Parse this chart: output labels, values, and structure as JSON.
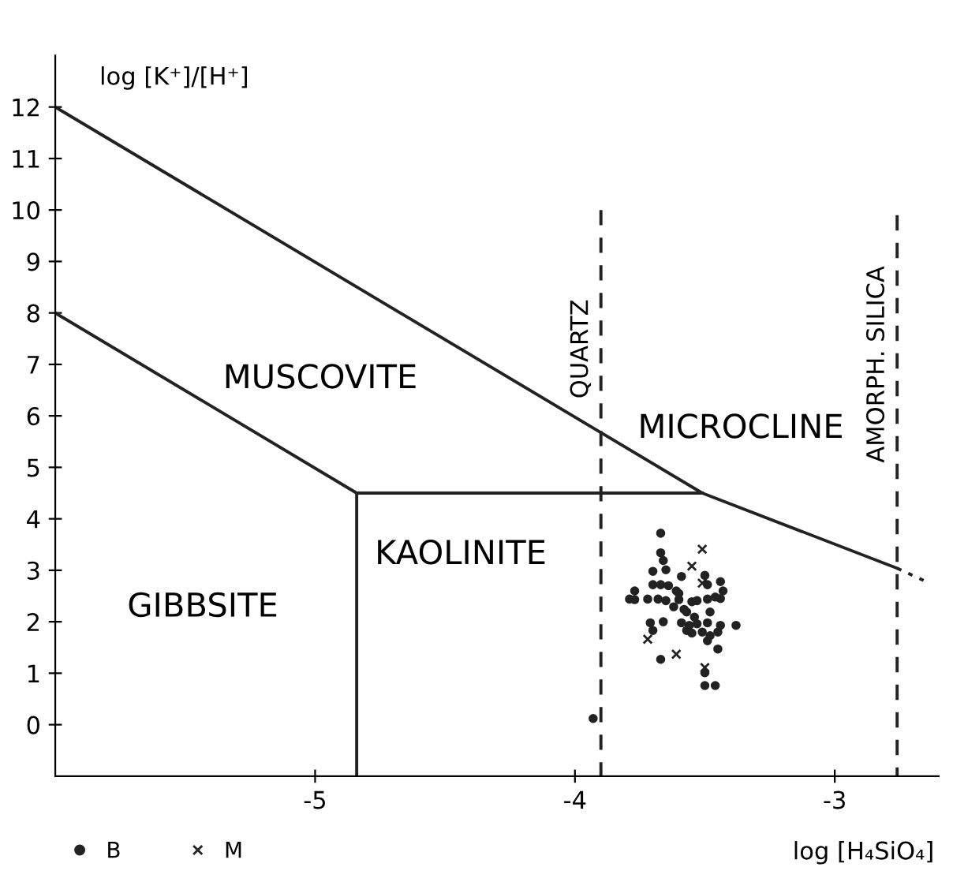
{
  "chart_data": {
    "type": "scatter",
    "xlabel": "log [H₄SiO₄]",
    "ylabel": "log [K⁺]/[H⁺]",
    "xlim": [
      -6,
      -2.6
    ],
    "xticks": [
      -5,
      -4,
      -3
    ],
    "ylim": [
      -1,
      13
    ],
    "yticks": [
      0,
      1,
      2,
      3,
      4,
      5,
      6,
      7,
      8,
      9,
      10,
      11,
      12
    ],
    "grid": false,
    "legend": "bottom left",
    "series": [
      {
        "type": "line",
        "color": "#222222",
        "line_style": "solid",
        "marker": "none",
        "x": [
          -6,
          -3.51,
          -2.76
        ],
        "values": [
          12,
          4.5,
          3.04
        ]
      },
      {
        "type": "line",
        "color": "#222222",
        "line_style": "dotted",
        "marker": "none",
        "x": [
          -2.76,
          -2.64
        ],
        "values": [
          3.04,
          2.76
        ]
      },
      {
        "type": "line",
        "color": "#222222",
        "line_style": "solid",
        "marker": "none",
        "x": [
          -6,
          -4.84,
          -3.51
        ],
        "values": [
          8,
          4.5,
          4.5
        ]
      },
      {
        "type": "line",
        "color": "#222222",
        "line_style": "solid",
        "marker": "none",
        "x": [
          -4.84,
          -4.84
        ],
        "values": [
          -1,
          4.5
        ]
      },
      {
        "type": "line",
        "color": "#222222",
        "line_style": "dashed",
        "marker": "none",
        "x": [
          -3.9,
          -3.9
        ],
        "values": [
          10,
          -1
        ]
      },
      {
        "type": "line",
        "color": "#222222",
        "line_style": "dashed",
        "marker": "none",
        "x": [
          -2.76,
          -2.76
        ],
        "values": [
          9.9,
          -1
        ]
      },
      {
        "name": "B",
        "color": "#222222",
        "marker": "circle",
        "x": [
          -3.67,
          -3.67,
          -3.66,
          -3.7,
          -3.65,
          -3.59,
          -3.5,
          -3.44,
          -3.7,
          -3.67,
          -3.64,
          -3.61,
          -3.49,
          -3.77,
          -3.79,
          -3.77,
          -3.72,
          -3.68,
          -3.65,
          -3.6,
          -3.53,
          -3.49,
          -3.46,
          -3.44,
          -3.43,
          -3.58,
          -3.57,
          -3.54,
          -3.71,
          -3.66,
          -3.59,
          -3.56,
          -3.53,
          -3.49,
          -3.44,
          -3.38,
          -3.7,
          -3.57,
          -3.55,
          -3.51,
          -3.48,
          -3.45,
          -3.49,
          -3.45,
          -3.67,
          -3.5,
          -3.5,
          -3.46,
          -3.93,
          -3.6,
          -3.62,
          -3.55,
          -3.48
        ],
        "values": [
          3.72,
          3.34,
          3.19,
          2.98,
          3.01,
          2.88,
          2.9,
          2.78,
          2.72,
          2.72,
          2.7,
          2.6,
          2.72,
          2.6,
          2.44,
          2.43,
          2.44,
          2.44,
          2.41,
          2.43,
          2.41,
          2.44,
          2.48,
          2.45,
          2.6,
          2.24,
          2.19,
          2.09,
          1.98,
          2.0,
          1.98,
          1.93,
          1.96,
          1.98,
          1.93,
          1.93,
          1.83,
          1.83,
          1.78,
          1.8,
          1.73,
          1.8,
          1.63,
          1.47,
          1.27,
          1.01,
          0.76,
          0.76,
          0.12,
          2.55,
          2.29,
          2.39,
          2.19
        ]
      },
      {
        "name": "M",
        "color": "#222222",
        "marker": "cross",
        "x": [
          -3.51,
          -3.55,
          -3.51,
          -3.72,
          -3.61,
          -3.5
        ],
        "values": [
          3.41,
          3.08,
          2.75,
          1.66,
          1.37,
          1.11
        ]
      }
    ],
    "annotations": [
      "MUSCOVITE",
      "GIBBSITE",
      "KAOLINITE",
      "MICROCLINE",
      {
        "text": "QUARTZ",
        "x": -3.9,
        "y": 7.3
      },
      {
        "text": "AMORPH. SILICA",
        "x": -2.76,
        "y": 7.0
      }
    ]
  }
}
